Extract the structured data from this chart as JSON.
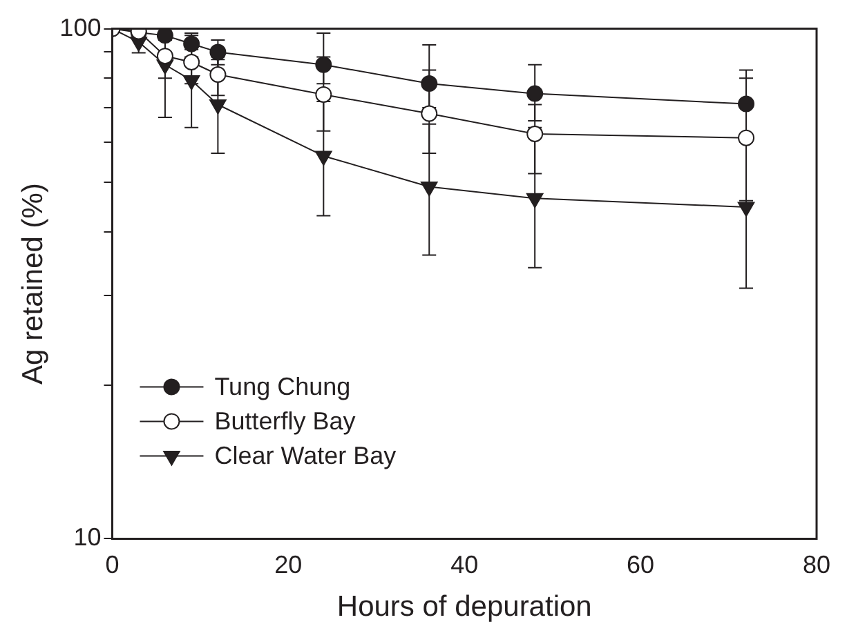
{
  "chart_data": {
    "type": "line",
    "xlabel": "Hours of depuration",
    "ylabel": "Ag retained (%)",
    "log": "y",
    "xlim": [
      0,
      80
    ],
    "xticks": [
      0,
      20,
      40,
      60,
      80
    ],
    "ylim": [
      10,
      100
    ],
    "yticks": [
      10,
      {
        "value": 20,
        "label": null
      },
      {
        "value": 30,
        "label": null
      },
      {
        "value": 40,
        "label": null
      },
      {
        "value": 50,
        "label": null
      },
      {
        "value": 60,
        "label": null
      },
      {
        "value": 70,
        "label": null
      },
      {
        "value": 80,
        "label": null
      },
      {
        "value": 90,
        "label": null
      },
      100
    ],
    "grid": false,
    "legend": "bottom left",
    "line_style": "solid",
    "x": [
      0,
      3,
      6,
      9,
      12,
      24,
      36,
      48,
      72
    ],
    "series": [
      {
        "name": "Tung Chung",
        "color": "#231f20",
        "marker": "circle",
        "values": [
          100,
          98.3,
          97,
          93.4,
          90,
          85,
          78.1,
          74.6,
          71.2
        ],
        "errors": [
          null,
          null,
          [
            95,
            99
          ],
          [
            88,
            98
          ],
          [
            85,
            95
          ],
          [
            78,
            98
          ],
          [
            70,
            93
          ],
          [
            66,
            85
          ],
          [
            60,
            83
          ]
        ]
      },
      {
        "name": "Butterfly Bay",
        "color": "#ffffff",
        "marker": "circle",
        "values": [
          100,
          98.8,
          88.4,
          86,
          81.3,
          74.3,
          68.2,
          62.2,
          61.1
        ],
        "errors": [
          null,
          null,
          [
            80,
            95
          ],
          [
            78,
            91
          ],
          [
            74,
            87
          ],
          [
            63,
            88
          ],
          [
            57,
            83
          ],
          [
            52,
            71
          ],
          [
            46,
            80
          ]
        ]
      },
      {
        "name": "Clear Water Bay",
        "color": "#231f20",
        "marker": "triangle",
        "values": [
          100,
          94.2,
          85,
          79.2,
          71,
          56.3,
          49,
          46.5,
          44.7
        ],
        "errors": [
          null,
          [
            89.7,
            99
          ],
          [
            67,
            100
          ],
          [
            64,
            97
          ],
          [
            57,
            88
          ],
          [
            43,
            72
          ],
          [
            36,
            65
          ],
          [
            34,
            64
          ],
          [
            31,
            60
          ]
        ]
      }
    ]
  }
}
